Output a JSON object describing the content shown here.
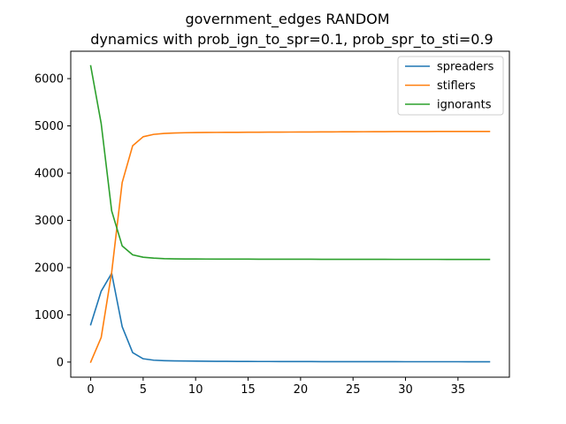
{
  "chart_data": {
    "type": "line",
    "title": "government_edges RANDOM",
    "subtitle": "dynamics with prob_ign_to_spr=0.1, prob_spr_to_sti=0.9",
    "xlabel": "",
    "ylabel": "",
    "xlim": [
      -1.9,
      39.9
    ],
    "ylim": [
      -320,
      6580
    ],
    "xticks": [
      0,
      5,
      10,
      15,
      20,
      25,
      30,
      35
    ],
    "yticks": [
      0,
      1000,
      2000,
      3000,
      4000,
      5000,
      6000
    ],
    "grid": false,
    "legend_position": "top-right",
    "x": [
      0,
      1,
      2,
      3,
      4,
      5,
      6,
      7,
      8,
      9,
      10,
      11,
      12,
      13,
      14,
      15,
      16,
      17,
      18,
      19,
      20,
      21,
      22,
      23,
      24,
      25,
      26,
      27,
      28,
      29,
      30,
      31,
      32,
      33,
      34,
      35,
      36,
      37,
      38
    ],
    "series": [
      {
        "name": "spreaders",
        "color": "#1f77b4",
        "values": [
          790,
          1500,
          1880,
          750,
          200,
          70,
          40,
          30,
          25,
          22,
          20,
          18,
          16,
          15,
          14,
          13,
          12,
          12,
          11,
          11,
          10,
          10,
          9,
          9,
          9,
          8,
          8,
          8,
          8,
          8,
          7,
          7,
          7,
          7,
          7,
          7,
          6,
          6,
          6
        ]
      },
      {
        "name": "stiflers",
        "color": "#ff7f0e",
        "values": [
          0,
          520,
          1900,
          3800,
          4580,
          4770,
          4820,
          4840,
          4850,
          4855,
          4858,
          4860,
          4862,
          4863,
          4864,
          4865,
          4866,
          4867,
          4868,
          4869,
          4870,
          4871,
          4872,
          4873,
          4874,
          4875,
          4876,
          4877,
          4878,
          4879,
          4880,
          4880,
          4880,
          4881,
          4881,
          4881,
          4882,
          4882,
          4882
        ]
      },
      {
        "name": "ignorants",
        "color": "#2ca02c",
        "values": [
          6270,
          5050,
          3200,
          2460,
          2270,
          2220,
          2200,
          2190,
          2185,
          2183,
          2182,
          2181,
          2180,
          2180,
          2179,
          2179,
          2178,
          2178,
          2178,
          2177,
          2177,
          2177,
          2176,
          2176,
          2176,
          2175,
          2175,
          2175,
          2175,
          2174,
          2174,
          2174,
          2174,
          2174,
          2173,
          2173,
          2173,
          2173,
          2173
        ]
      }
    ]
  }
}
